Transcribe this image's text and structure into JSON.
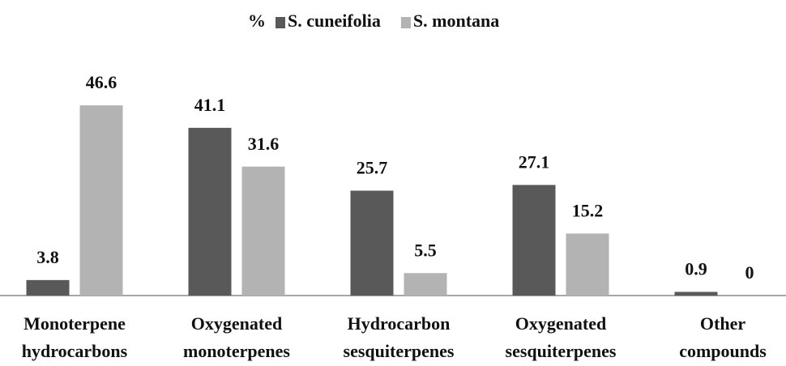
{
  "chart_data": {
    "type": "bar",
    "legend_title": "%",
    "categories": [
      [
        "Monoterpene",
        "hydrocarbons"
      ],
      [
        "Oxygenated",
        "monoterpenes"
      ],
      [
        "Hydrocarbon",
        "sesquiterpenes"
      ],
      [
        "Oxygenated",
        "sesquiterpenes"
      ],
      [
        "Other",
        "compounds"
      ]
    ],
    "series": [
      {
        "name": "S. cuneifolia",
        "color": "#595959",
        "values": [
          3.8,
          41.1,
          25.7,
          27.1,
          0.9
        ]
      },
      {
        "name": "S. montana",
        "color": "#b3b3b3",
        "values": [
          46.6,
          31.6,
          5.5,
          15.2,
          0
        ]
      }
    ],
    "ylim": [
      0,
      50
    ],
    "legend_position": "top"
  }
}
